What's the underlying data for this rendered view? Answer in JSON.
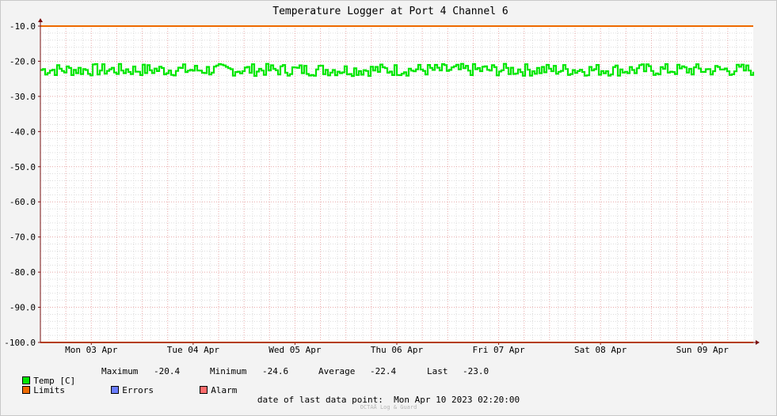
{
  "chart_data": {
    "type": "line",
    "title": "Temperature Logger at Port 4 Channel 6",
    "ylim": [
      -100,
      -10
    ],
    "ytick_labels": [
      "-10.0",
      "-20.0",
      "-30.0",
      "-40.0",
      "-50.0",
      "-60.0",
      "-70.0",
      "-80.0",
      "-90.0",
      "-100.0"
    ],
    "ytick_values": [
      -10,
      -20,
      -30,
      -40,
      -50,
      -60,
      -70,
      -80,
      -90,
      -100
    ],
    "x_range_days": [
      0,
      7
    ],
    "xtick_labels": [
      "Mon 03 Apr",
      "Tue 04 Apr",
      "Wed 05 Apr",
      "Thu 06 Apr",
      "Fri 07 Apr",
      "Sat 08 Apr",
      "Sun 09 Apr"
    ],
    "grid": true,
    "series": [
      {
        "name": "Temp [C]",
        "color": "#00e600",
        "min": -24.6,
        "max": -20.4,
        "mean": -22.4,
        "last": -23.0,
        "style": "noisy step line around the mean"
      },
      {
        "name": "Limits",
        "color": "#ee6a00",
        "values": [
          -10.0,
          -100.0
        ]
      }
    ],
    "legend_extra": [
      {
        "name": "Errors",
        "color": "#6b7dff"
      },
      {
        "name": "Alarm",
        "color": "#ff6b6b"
      }
    ]
  },
  "legend": {
    "temp_label": "Temp [C]",
    "max_label": "Maximum",
    "max_value": "-20.4",
    "min_label": "Minimum",
    "min_value": "-24.6",
    "avg_label": "Average",
    "avg_value": "-22.4",
    "last_label": "Last",
    "last_value": "-23.0",
    "limits_label": "Limits",
    "errors_label": "Errors",
    "alarm_label": "Alarm"
  },
  "footer": {
    "last_point_label": "date of last data point:",
    "last_point_value": "Mon Apr 10 2023 02:20:00",
    "brand": "OCTAÅ Log & Guard"
  },
  "colors": {
    "temp": "#00e600",
    "limits": "#ee6a00",
    "errors": "#6b7dff",
    "alarm": "#ff6b6b",
    "axis": "#7a1010"
  }
}
